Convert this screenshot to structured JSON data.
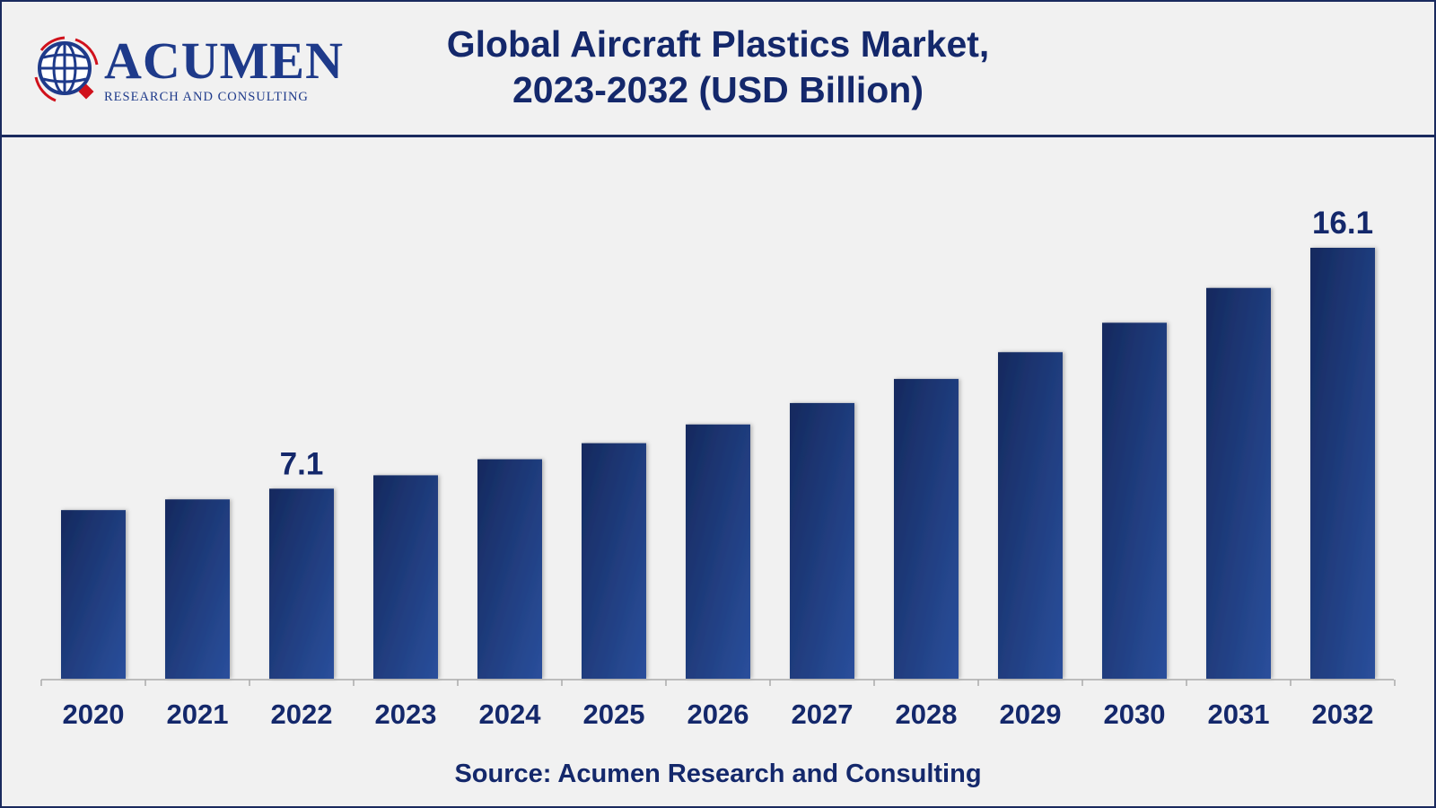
{
  "header": {
    "title_line1": "Global Aircraft Plastics Market,",
    "title_line2": "2023-2032 (USD Billion)"
  },
  "logo": {
    "wordmark": "ACUMEN",
    "tagline": "RESEARCH AND CONSULTING"
  },
  "footer": {
    "source": "Source: Acumen Research and Consulting"
  },
  "colors": {
    "bar_dark": "#15295e",
    "bar_light": "#2a4f9c",
    "text": "#14286b",
    "accent_red": "#d0111b"
  },
  "chart_data": {
    "type": "bar",
    "title": "Global Aircraft Plastics Market, 2023-2032 (USD Billion)",
    "xlabel": "",
    "ylabel": "",
    "categories": [
      "2020",
      "2021",
      "2022",
      "2023",
      "2024",
      "2025",
      "2026",
      "2027",
      "2028",
      "2029",
      "2030",
      "2031",
      "2032"
    ],
    "values": [
      6.3,
      6.7,
      7.1,
      7.6,
      8.2,
      8.8,
      9.5,
      10.3,
      11.2,
      12.2,
      13.3,
      14.6,
      16.1
    ],
    "data_labels": {
      "2022": "7.1",
      "2032": "16.1"
    },
    "ylim": [
      0,
      16.1
    ],
    "grid": false,
    "legend": "none"
  }
}
